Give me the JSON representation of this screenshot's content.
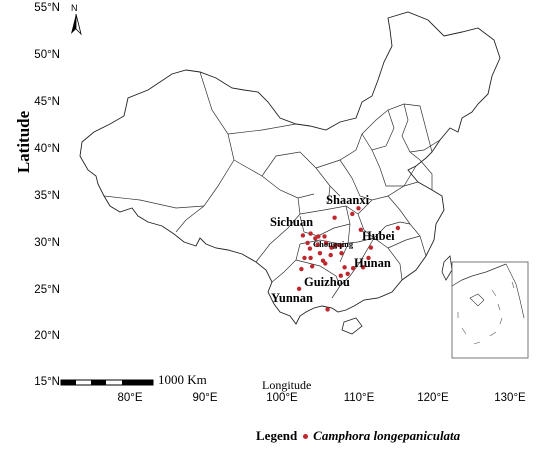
{
  "axes": {
    "y_title": "Latitude",
    "x_title": "Longitude",
    "lat_ticks": [
      "55°N",
      "50°N",
      "45°N",
      "40°N",
      "35°N",
      "30°N",
      "25°N",
      "20°N",
      "15°N"
    ],
    "lon_ticks": [
      "80°E",
      "90°E",
      "100°E",
      "110°E",
      "120°E",
      "130°E"
    ]
  },
  "north_arrow": {
    "label": "N",
    "icon": "north-arrow-icon"
  },
  "scale_bar": {
    "label": "1000 Km"
  },
  "regions": [
    {
      "key": "shaanxi",
      "label": "Shaanxi"
    },
    {
      "key": "sichuan",
      "label": "Sichuan"
    },
    {
      "key": "chongqing",
      "label": "Chongqing"
    },
    {
      "key": "hubei",
      "label": "Hubei"
    },
    {
      "key": "hunan",
      "label": "Hunan"
    },
    {
      "key": "guizhou",
      "label": "Guizhou"
    },
    {
      "key": "yunnan",
      "label": "Yunnan"
    }
  ],
  "legend": {
    "title": "Legend",
    "species": "Camphora longepaniculata",
    "dot_color": "#c0272d"
  },
  "occurrence_points": [
    {
      "lon": 106.5,
      "lat": 32.6
    },
    {
      "lon": 108.8,
      "lat": 33.0
    },
    {
      "lon": 109.6,
      "lat": 33.6
    },
    {
      "lon": 102.4,
      "lat": 30.7
    },
    {
      "lon": 103.4,
      "lat": 30.9
    },
    {
      "lon": 104.0,
      "lat": 30.4
    },
    {
      "lon": 104.4,
      "lat": 30.6
    },
    {
      "lon": 105.2,
      "lat": 30.6
    },
    {
      "lon": 103.0,
      "lat": 29.9
    },
    {
      "lon": 104.3,
      "lat": 29.7
    },
    {
      "lon": 105.4,
      "lat": 29.9
    },
    {
      "lon": 106.1,
      "lat": 29.4
    },
    {
      "lon": 106.6,
      "lat": 29.6
    },
    {
      "lon": 107.3,
      "lat": 29.6
    },
    {
      "lon": 103.3,
      "lat": 29.3
    },
    {
      "lon": 104.6,
      "lat": 28.8
    },
    {
      "lon": 106.0,
      "lat": 28.6
    },
    {
      "lon": 107.4,
      "lat": 28.8
    },
    {
      "lon": 102.6,
      "lat": 28.3
    },
    {
      "lon": 103.4,
      "lat": 28.3
    },
    {
      "lon": 102.2,
      "lat": 27.1
    },
    {
      "lon": 103.6,
      "lat": 27.4
    },
    {
      "lon": 105.3,
      "lat": 27.7
    },
    {
      "lon": 107.8,
      "lat": 27.3
    },
    {
      "lon": 107.3,
      "lat": 26.4
    },
    {
      "lon": 108.2,
      "lat": 26.6
    },
    {
      "lon": 108.9,
      "lat": 27.2
    },
    {
      "lon": 101.9,
      "lat": 25.0
    },
    {
      "lon": 105.6,
      "lat": 22.8
    },
    {
      "lon": 109.9,
      "lat": 31.3
    },
    {
      "lon": 111.2,
      "lat": 29.4
    },
    {
      "lon": 110.9,
      "lat": 28.3
    },
    {
      "lon": 110.2,
      "lat": 27.3
    },
    {
      "lon": 114.7,
      "lat": 31.5
    },
    {
      "lon": 105.0,
      "lat": 28.0
    }
  ]
}
